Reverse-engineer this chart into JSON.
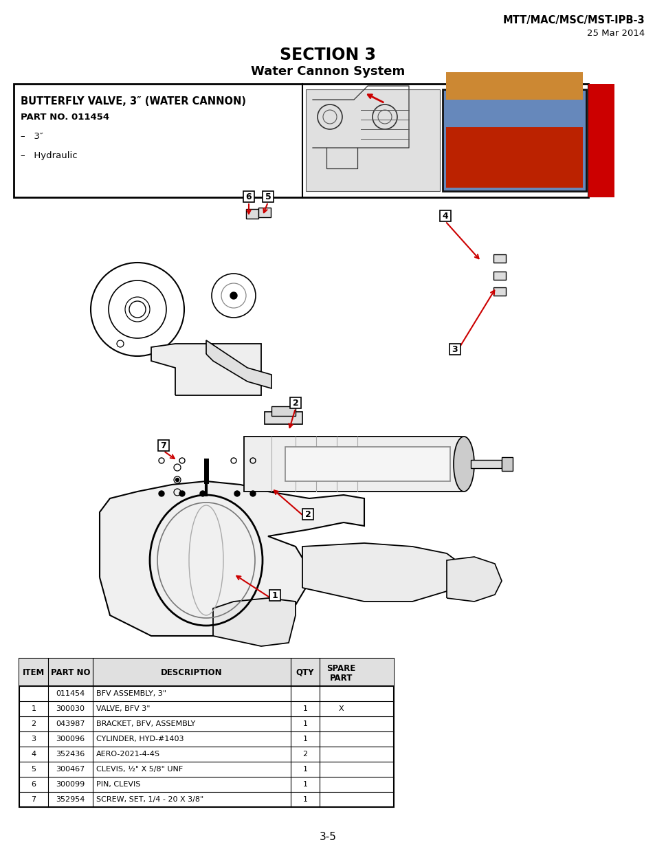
{
  "header_right_line1": "MTT/MAC/MSC/MST-IPB-3",
  "header_right_line2": "25 Mar 2014",
  "section_title": "SECTION 3",
  "section_subtitle": "Water Cannon System",
  "part_box_title": "BUTTERFLY VALVE, 3″ (WATER CANNON)",
  "part_no_label": "PART NO. 011454",
  "part_bullets": [
    "–   3″",
    "–   Hydraulic"
  ],
  "page_number": "3-5",
  "table_headers": [
    "ITEM",
    "PART NO",
    "DESCRIPTION",
    "QTY",
    "SPARE\nPART"
  ],
  "table_rows": [
    [
      "",
      "011454",
      "BFV ASSEMBLY, 3\"",
      "",
      ""
    ],
    [
      "1",
      "300030",
      "VALVE, BFV 3\"",
      "1",
      "X"
    ],
    [
      "2",
      "043987",
      "BRACKET, BFV, ASSEMBLY",
      "1",
      ""
    ],
    [
      "3",
      "300096",
      "CYLINDER, HYD-#1403",
      "1",
      ""
    ],
    [
      "4",
      "352436",
      "AERO-2021-4-4S",
      "2",
      ""
    ],
    [
      "5",
      "300467",
      "CLEVIS, ½\" X 5/8\" UNF",
      "1",
      ""
    ],
    [
      "6",
      "300099",
      "PIN, CLEVIS",
      "1",
      ""
    ],
    [
      "7",
      "352954",
      "SCREW, SET, 1/4 - 20 X 3/8\"",
      "1",
      ""
    ]
  ],
  "red_color": "#cc0000",
  "black": "#000000",
  "white": "#ffffff",
  "draw_gray": "#888888",
  "draw_light": "#d8d8d8",
  "draw_dark": "#444444"
}
